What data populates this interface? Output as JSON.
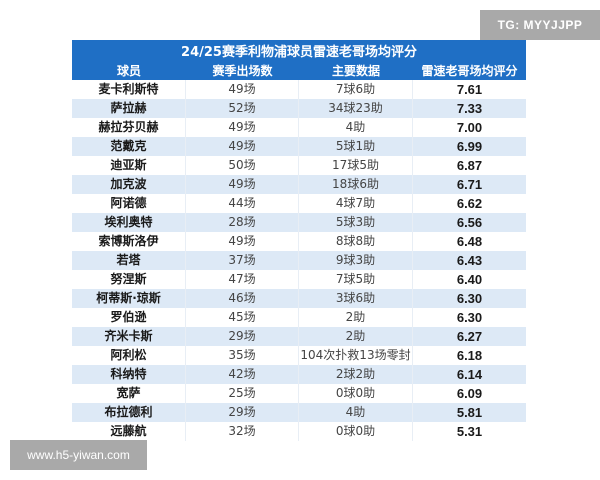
{
  "watermarks": {
    "tg": "TG: MYYJJPP",
    "url": "www.h5-yiwan.com"
  },
  "table": {
    "title": "24/25赛季利物浦球员雷速老哥场均评分",
    "headers": [
      "球员",
      "赛季出场数",
      "主要数据",
      "雷速老哥场均评分"
    ],
    "colors": {
      "header_bg": "#1f6fc5",
      "stripe_bg": "#dde9f6"
    },
    "rows": [
      {
        "name": "麦卡利斯特",
        "apps": "49场",
        "stats": "7球6助",
        "rating": "7.61"
      },
      {
        "name": "萨拉赫",
        "apps": "52场",
        "stats": "34球23助",
        "rating": "7.33"
      },
      {
        "name": "赫拉芬贝赫",
        "apps": "49场",
        "stats": "4助",
        "rating": "7.00"
      },
      {
        "name": "范戴克",
        "apps": "49场",
        "stats": "5球1助",
        "rating": "6.99"
      },
      {
        "name": "迪亚斯",
        "apps": "50场",
        "stats": "17球5助",
        "rating": "6.87"
      },
      {
        "name": "加克波",
        "apps": "49场",
        "stats": "18球6助",
        "rating": "6.71"
      },
      {
        "name": "阿诺德",
        "apps": "44场",
        "stats": "4球7助",
        "rating": "6.62"
      },
      {
        "name": "埃利奥特",
        "apps": "28场",
        "stats": "5球3助",
        "rating": "6.56"
      },
      {
        "name": "索博斯洛伊",
        "apps": "49场",
        "stats": "8球8助",
        "rating": "6.48"
      },
      {
        "name": "若塔",
        "apps": "37场",
        "stats": "9球3助",
        "rating": "6.43"
      },
      {
        "name": "努涅斯",
        "apps": "47场",
        "stats": "7球5助",
        "rating": "6.40"
      },
      {
        "name": "柯蒂斯·琼斯",
        "apps": "46场",
        "stats": "3球6助",
        "rating": "6.30"
      },
      {
        "name": "罗伯逊",
        "apps": "45场",
        "stats": "2助",
        "rating": "6.30"
      },
      {
        "name": "齐米卡斯",
        "apps": "29场",
        "stats": "2助",
        "rating": "6.27"
      },
      {
        "name": "阿利松",
        "apps": "35场",
        "stats": "104次扑救13场零封",
        "rating": "6.18"
      },
      {
        "name": "科纳特",
        "apps": "42场",
        "stats": "2球2助",
        "rating": "6.14"
      },
      {
        "name": "宽萨",
        "apps": "25场",
        "stats": "0球0助",
        "rating": "6.09"
      },
      {
        "name": "布拉德利",
        "apps": "29场",
        "stats": "4助",
        "rating": "5.81"
      },
      {
        "name": "远藤航",
        "apps": "32场",
        "stats": "0球0助",
        "rating": "5.31"
      }
    ]
  }
}
